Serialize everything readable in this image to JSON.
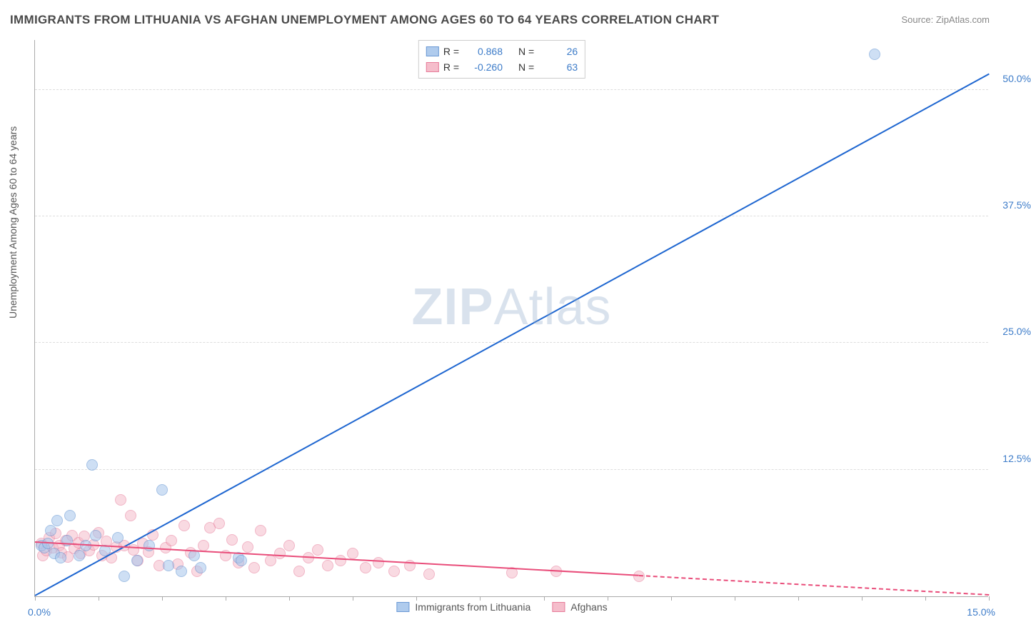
{
  "title": "IMMIGRANTS FROM LITHUANIA VS AFGHAN UNEMPLOYMENT AMONG AGES 60 TO 64 YEARS CORRELATION CHART",
  "source": "Source: ZipAtlas.com",
  "y_axis_label": "Unemployment Among Ages 60 to 64 years",
  "watermark_a": "ZIP",
  "watermark_b": "Atlas",
  "chart": {
    "type": "scatter",
    "xlim": [
      0.0,
      15.0
    ],
    "ylim": [
      0.0,
      55.0
    ],
    "x_ticks_minor": [
      0,
      1,
      2,
      3,
      4,
      5,
      6,
      7,
      8,
      9,
      10,
      11,
      12,
      13,
      14,
      15
    ],
    "y_ticks": [
      12.5,
      25.0,
      37.5,
      50.0
    ],
    "y_tick_labels": [
      "12.5%",
      "25.0%",
      "37.5%",
      "50.0%"
    ],
    "x_tick_labels": {
      "left": "0.0%",
      "right": "15.0%"
    },
    "background_color": "#ffffff",
    "grid_color": "#dddddd",
    "axis_color": "#aaaaaa"
  },
  "series": [
    {
      "id": "lithuania",
      "label": "Immigrants from Lithuania",
      "R": "0.868",
      "N": "26",
      "color_fill": "#a7c6ec",
      "color_stroke": "#5b8fd0",
      "fill_opacity": 0.55,
      "marker_radius": 8,
      "trend": {
        "x1": 0.0,
        "y1": 0.0,
        "x2": 15.0,
        "y2": 51.5,
        "color": "#1e66d0",
        "width": 2
      },
      "points": [
        [
          0.1,
          5.0
        ],
        [
          0.15,
          4.8
        ],
        [
          0.2,
          5.2
        ],
        [
          0.25,
          6.5
        ],
        [
          0.3,
          4.2
        ],
        [
          0.35,
          7.5
        ],
        [
          0.4,
          3.8
        ],
        [
          0.5,
          5.5
        ],
        [
          0.55,
          8.0
        ],
        [
          0.7,
          4.0
        ],
        [
          0.8,
          5.0
        ],
        [
          0.9,
          13.0
        ],
        [
          0.95,
          6.0
        ],
        [
          1.1,
          4.5
        ],
        [
          1.3,
          5.8
        ],
        [
          1.4,
          2.0
        ],
        [
          1.6,
          3.5
        ],
        [
          1.8,
          5.0
        ],
        [
          2.0,
          10.5
        ],
        [
          2.1,
          3.0
        ],
        [
          2.3,
          2.5
        ],
        [
          2.5,
          4.0
        ],
        [
          2.6,
          2.8
        ],
        [
          3.2,
          3.8
        ],
        [
          3.25,
          3.5
        ],
        [
          13.2,
          53.5
        ]
      ]
    },
    {
      "id": "afghans",
      "label": "Afghans",
      "R": "-0.260",
      "N": "63",
      "color_fill": "#f4b6c6",
      "color_stroke": "#e56f90",
      "fill_opacity": 0.5,
      "marker_radius": 8,
      "trend": {
        "x1": 0.0,
        "y1": 5.3,
        "x2": 9.5,
        "y2": 2.0,
        "color": "#e94d7a",
        "width": 2,
        "dash_x2": 15.0,
        "dash_y2": 0.1
      },
      "points": [
        [
          0.1,
          5.2
        ],
        [
          0.12,
          4.0
        ],
        [
          0.18,
          4.5
        ],
        [
          0.22,
          5.8
        ],
        [
          0.28,
          4.8
        ],
        [
          0.32,
          6.2
        ],
        [
          0.38,
          5.0
        ],
        [
          0.42,
          4.3
        ],
        [
          0.48,
          5.5
        ],
        [
          0.52,
          3.9
        ],
        [
          0.58,
          6.0
        ],
        [
          0.62,
          4.7
        ],
        [
          0.68,
          5.3
        ],
        [
          0.72,
          4.2
        ],
        [
          0.78,
          5.9
        ],
        [
          0.85,
          4.5
        ],
        [
          0.92,
          5.1
        ],
        [
          1.0,
          6.3
        ],
        [
          1.05,
          4.0
        ],
        [
          1.12,
          5.4
        ],
        [
          1.2,
          3.8
        ],
        [
          1.28,
          4.9
        ],
        [
          1.35,
          9.5
        ],
        [
          1.4,
          5.0
        ],
        [
          1.5,
          8.0
        ],
        [
          1.55,
          4.6
        ],
        [
          1.62,
          3.5
        ],
        [
          1.7,
          5.2
        ],
        [
          1.78,
          4.4
        ],
        [
          1.85,
          6.1
        ],
        [
          1.95,
          3.0
        ],
        [
          2.05,
          4.8
        ],
        [
          2.15,
          5.5
        ],
        [
          2.25,
          3.2
        ],
        [
          2.35,
          7.0
        ],
        [
          2.45,
          4.3
        ],
        [
          2.55,
          2.5
        ],
        [
          2.65,
          5.0
        ],
        [
          2.75,
          6.8
        ],
        [
          2.9,
          7.2
        ],
        [
          3.0,
          4.0
        ],
        [
          3.1,
          5.6
        ],
        [
          3.2,
          3.3
        ],
        [
          3.35,
          4.9
        ],
        [
          3.45,
          2.8
        ],
        [
          3.55,
          6.5
        ],
        [
          3.7,
          3.5
        ],
        [
          3.85,
          4.2
        ],
        [
          4.0,
          5.0
        ],
        [
          4.15,
          2.5
        ],
        [
          4.3,
          3.8
        ],
        [
          4.45,
          4.6
        ],
        [
          4.6,
          3.0
        ],
        [
          4.8,
          3.5
        ],
        [
          5.0,
          4.2
        ],
        [
          5.2,
          2.8
        ],
        [
          5.4,
          3.3
        ],
        [
          5.65,
          2.5
        ],
        [
          5.9,
          3.0
        ],
        [
          6.2,
          2.2
        ],
        [
          7.5,
          2.3
        ],
        [
          8.2,
          2.5
        ],
        [
          9.5,
          2.0
        ]
      ]
    }
  ],
  "legend_top": {
    "R_label": "R =",
    "N_label": "N ="
  }
}
